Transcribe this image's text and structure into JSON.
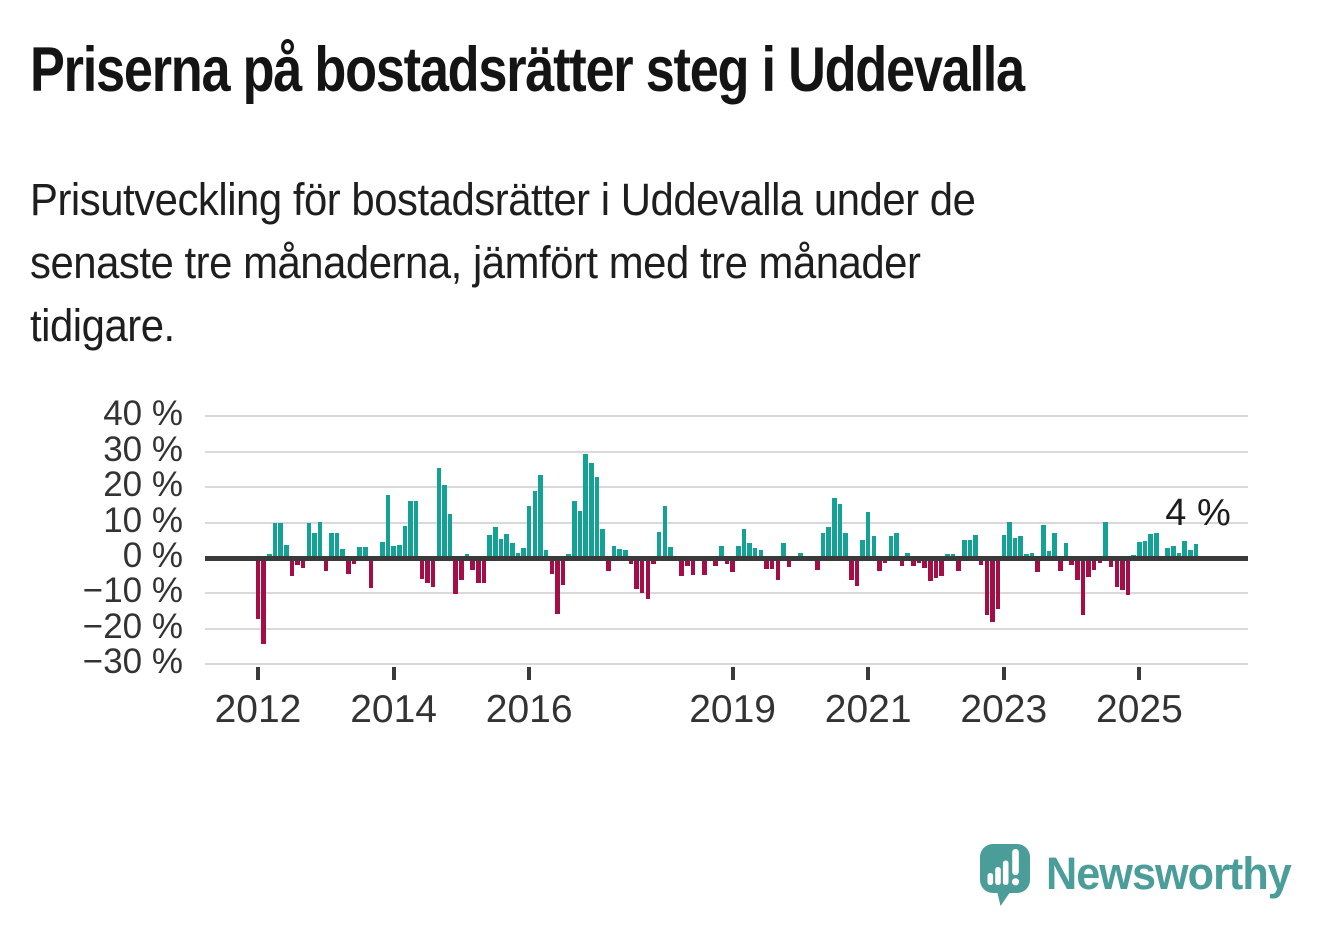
{
  "header": {
    "title": "Priserna på bostadsrätter steg i Uddevalla",
    "subtitle_lines": [
      "Prisutveckling för bostadsrätter i Uddevalla under de",
      "senaste tre månaderna, jämfört med tre månader",
      "tidigare."
    ]
  },
  "chart_data": {
    "type": "bar",
    "title": "Prisutveckling för bostadsrätter i Uddevalla, tremånadersjämförelse",
    "x_unit": "month",
    "x_start": "2012-01",
    "x_end": "2025-11",
    "ylabel": "",
    "ylim": [
      -30,
      40
    ],
    "grid": true,
    "y_tick_labels": [
      "40 %",
      "30 %",
      "20 %",
      "10 %",
      "0 %",
      "−10 %",
      "−20 %",
      "−30 %"
    ],
    "y_tick_values": [
      40,
      30,
      20,
      10,
      0,
      -10,
      -20,
      -30
    ],
    "x_tick_labels": [
      "2012",
      "2014",
      "2016",
      "2019",
      "2021",
      "2023",
      "2025"
    ],
    "annotation": {
      "text": "4 %",
      "value": 4
    },
    "colors": {
      "positive": "#15a296",
      "negative": "#a40d45",
      "gridline": "#d9d9d9",
      "zero_line": "#3a3a3a",
      "axis_text": "#333333"
    },
    "values": [
      -17,
      -24,
      1,
      10,
      10,
      3.6,
      -4.7,
      -1.8,
      -2.5,
      10,
      7,
      10.3,
      -3.5,
      7.1,
      7,
      2.6,
      -4.2,
      -1.4,
      3.1,
      3.1,
      -8.1,
      0.5,
      4.5,
      17.9,
      3.3,
      3.8,
      9,
      16.2,
      16.2,
      -5.7,
      -6.8,
      -7.8,
      25.5,
      20.5,
      12.5,
      -9.9,
      -5.9,
      1.1,
      -3.1,
      -6.9,
      -6.9,
      6.6,
      8.7,
      5.5,
      6.7,
      4.2,
      1.5,
      2.9,
      14.8,
      19,
      23.5,
      2.4,
      -4.1,
      -15.4,
      -7.4,
      1,
      16,
      13.4,
      29.4,
      26.7,
      22.8,
      8.2,
      -3.3,
      3.3,
      2.6,
      2.3,
      -1.5,
      -8.6,
      -9.6,
      -11.2,
      -1.5,
      7.3,
      14.6,
      3,
      0.2,
      -4.7,
      -2,
      -4.4,
      0.2,
      -4.4,
      0.2,
      -2,
      3.3,
      -1.4,
      -3.8,
      3.5,
      8.2,
      4.2,
      2.7,
      2.2,
      -2.8,
      -2.8,
      -5.9,
      4.1,
      -2.2,
      0.2,
      1.4,
      0.2,
      0.2,
      -3.1,
      7,
      8.7,
      16.9,
      15.3,
      7,
      -5.9,
      -7.5,
      5.2,
      13.1,
      6.1,
      -3.5,
      -1,
      6.1,
      7.2,
      -2,
      1.5,
      -2,
      -1.2,
      -2.5,
      -6.1,
      -5.5,
      -4.9,
      1.2,
      1.2,
      -3.5,
      5,
      5,
      6.4,
      -1.6,
      -15.7,
      -17.8,
      -14.2,
      6.6,
      10.2,
      5.6,
      6.2,
      1.2,
      1.5,
      -3.8,
      9.2,
      1.9,
      7.2,
      -3.3,
      4.2,
      -1.7,
      -5.9,
      -15.8,
      -5,
      -3.1,
      -1,
      10.2,
      -2.3,
      -7.8,
      -8.7,
      -10.1,
      0.8,
      4.4,
      4.7,
      6.9,
      7,
      -0.7,
      2.9,
      3.3,
      1.5,
      4.8,
      2.4,
      4
    ]
  },
  "footer": {
    "brand": "Newsworthy",
    "logo_icon": "newsworthy-speech-bubble-chart-icon",
    "brand_color": "#4a9d99"
  }
}
